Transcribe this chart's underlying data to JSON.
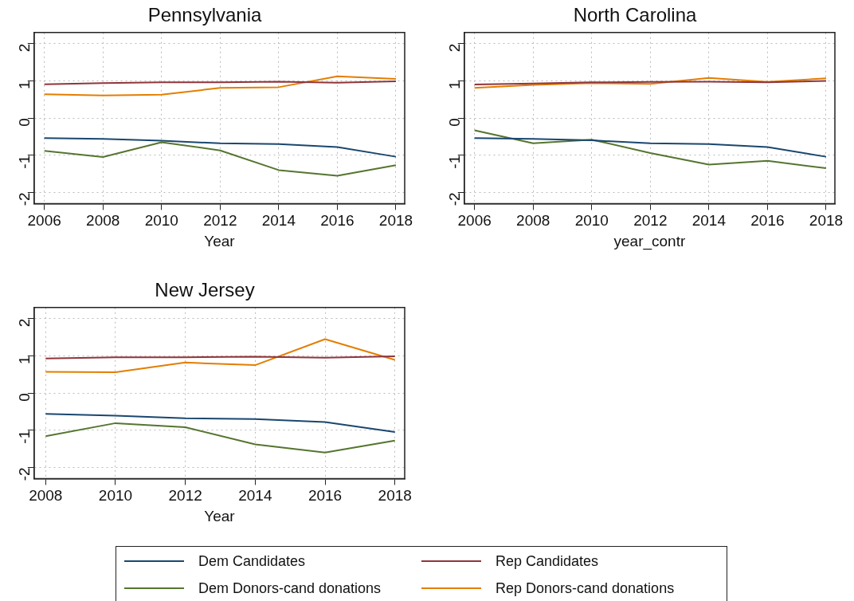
{
  "chart_data": [
    {
      "type": "line",
      "title": "Pennsylvania",
      "xlabel": "Year",
      "x": [
        2006,
        2008,
        2010,
        2012,
        2014,
        2016,
        2018
      ],
      "xlim": [
        2005.65,
        2018.3
      ],
      "xticks": [
        2006,
        2008,
        2010,
        2012,
        2014,
        2016,
        2018
      ],
      "ylim": [
        -2.3,
        2.3
      ],
      "yticks": [
        -2,
        -1,
        0,
        1,
        2
      ],
      "grid": true,
      "marker": "none",
      "legend": "bottom",
      "series": [
        {
          "name": "Dem Candidates",
          "color": "#1a476f",
          "values": [
            -0.54,
            -0.56,
            -0.61,
            -0.68,
            -0.7,
            -0.78,
            -1.04
          ]
        },
        {
          "name": "Rep Candidates",
          "color": "#90353b",
          "values": [
            0.91,
            0.94,
            0.96,
            0.96,
            0.98,
            0.95,
            0.99
          ]
        },
        {
          "name": "Dem Donors-cand donations",
          "color": "#55752f",
          "values": [
            -0.88,
            -1.05,
            -0.65,
            -0.87,
            -1.4,
            -1.55,
            -1.27
          ]
        },
        {
          "name": "Rep Donors-cand donations",
          "color": "#e37e00",
          "values": [
            0.64,
            0.61,
            0.63,
            0.81,
            0.83,
            1.12,
            1.05
          ]
        }
      ]
    },
    {
      "type": "line",
      "title": "North Carolina",
      "xlabel": "year_contr",
      "x": [
        2006,
        2008,
        2010,
        2012,
        2014,
        2016,
        2018
      ],
      "xlim": [
        2005.65,
        2018.3
      ],
      "xticks": [
        2006,
        2008,
        2010,
        2012,
        2014,
        2016,
        2018
      ],
      "ylim": [
        -2.3,
        2.3
      ],
      "yticks": [
        -2,
        -1,
        0,
        1,
        2
      ],
      "grid": true,
      "marker": "none",
      "series": [
        {
          "color": "#1a476f",
          "values": [
            -0.54,
            -0.56,
            -0.6,
            -0.68,
            -0.7,
            -0.78,
            -1.04
          ]
        },
        {
          "color": "#90353b",
          "values": [
            0.9,
            0.93,
            0.96,
            0.97,
            0.98,
            0.96,
            1.0
          ]
        },
        {
          "color": "#55752f",
          "values": [
            -0.33,
            -0.68,
            -0.58,
            -0.94,
            -1.25,
            -1.15,
            -1.35
          ]
        },
        {
          "color": "#e37e00",
          "values": [
            0.81,
            0.89,
            0.94,
            0.92,
            1.08,
            0.97,
            1.07
          ]
        }
      ]
    },
    {
      "type": "line",
      "title": "New Jersey",
      "xlabel": "Year",
      "x": [
        2008,
        2010,
        2012,
        2014,
        2016,
        2018
      ],
      "xlim": [
        2007.67,
        2018.28
      ],
      "xticks": [
        2008,
        2010,
        2012,
        2014,
        2016,
        2018
      ],
      "ylim": [
        -2.3,
        2.3
      ],
      "yticks": [
        -2,
        -1,
        0,
        1,
        2
      ],
      "grid": true,
      "marker": "none",
      "series": [
        {
          "color": "#1a476f",
          "values": [
            -0.56,
            -0.61,
            -0.68,
            -0.7,
            -0.78,
            -1.05
          ]
        },
        {
          "color": "#90353b",
          "values": [
            0.93,
            0.96,
            0.96,
            0.98,
            0.95,
            0.99
          ]
        },
        {
          "color": "#55752f",
          "values": [
            -1.16,
            -0.81,
            -0.92,
            -1.38,
            -1.6,
            -1.28
          ]
        },
        {
          "color": "#e37e00",
          "values": [
            0.57,
            0.56,
            0.82,
            0.75,
            1.45,
            0.89
          ]
        }
      ]
    }
  ]
}
